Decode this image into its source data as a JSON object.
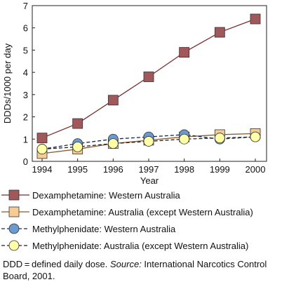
{
  "chart_data": {
    "type": "line",
    "x": [
      1994,
      1995,
      1996,
      1997,
      1998,
      1999,
      2000
    ],
    "xticks": [
      "1994",
      "1995",
      "1996",
      "1997",
      "1998",
      "1999",
      "2000"
    ],
    "yticks": [
      "0",
      "1",
      "2",
      "3",
      "4",
      "5",
      "6",
      "7"
    ],
    "xlabel": "Year",
    "ylabel": "DDDs/1000 per day",
    "ylim": [
      0,
      7
    ],
    "grid": false,
    "series": [
      {
        "name": "Dexamphetamine: Western Australia",
        "values": [
          1.05,
          1.7,
          2.75,
          3.8,
          4.9,
          5.8,
          6.4
        ],
        "marker": "square",
        "fill": "#a0585a",
        "line": "#7a2a2e",
        "dashed": false
      },
      {
        "name": "Dexamphetamine: Australia (except Western Australia)",
        "values": [
          0.35,
          0.55,
          0.8,
          0.95,
          1.1,
          1.2,
          1.25
        ],
        "marker": "square",
        "fill": "#f5cc96",
        "line": "#8a5a2a",
        "dashed": false
      },
      {
        "name": "Methylphenidate: Western Australia",
        "values": [
          0.55,
          0.8,
          1.0,
          1.1,
          1.2,
          1.0,
          1.1
        ],
        "marker": "circle",
        "fill": "#6a9bd0",
        "line": "#1a2a4a",
        "dashed": true
      },
      {
        "name": "Methylphenidate: Australia (except Western Australia)",
        "values": [
          0.55,
          0.65,
          0.8,
          0.9,
          1.0,
          1.05,
          1.1
        ],
        "marker": "circle",
        "fill": "#ffffa8",
        "line": "#222222",
        "dashed": true
      }
    ]
  },
  "footnote": {
    "prefix": "DDD = defined daily dose. ",
    "source_label": "Source:",
    "source_text": " International Narcotics Control Board, 2001."
  }
}
